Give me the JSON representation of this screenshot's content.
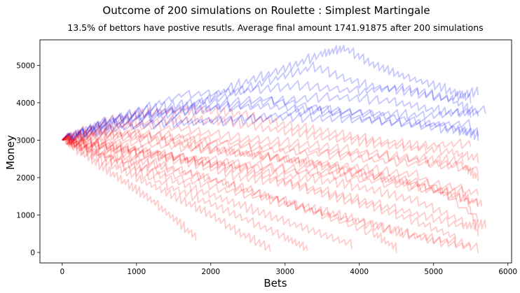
{
  "chart_data": {
    "type": "line",
    "title": "Outcome of 200 simulations on Roulette : Simplest Martingale",
    "subtitle": "13.5% of bettors have postive resutls. Average final amount 1741.91875 after 200 simulations",
    "xlabel": "Bets",
    "ylabel": "Money",
    "xlim": [
      -300,
      6050
    ],
    "ylim": [
      -280,
      5680
    ],
    "xticks": [
      0,
      1000,
      2000,
      3000,
      4000,
      5000,
      6000
    ],
    "yticks": [
      0,
      1000,
      2000,
      3000,
      4000,
      5000
    ],
    "grid": false,
    "legend": "none",
    "series_summary": {
      "count": 200,
      "start_value": 3000,
      "positive_fraction": 0.135,
      "average_final": 1741.91875
    },
    "series": [
      {
        "positive": true,
        "x": [
          0,
          600,
          1200,
          1800,
          2400,
          3000,
          3500,
          3800,
          4200,
          4600,
          5100,
          5500
        ],
        "y": [
          3000,
          3500,
          3700,
          3950,
          4500,
          4900,
          5300,
          5450,
          5000,
          4700,
          4400,
          4100
        ]
      },
      {
        "positive": true,
        "x": [
          0,
          700,
          1400,
          2100,
          2800,
          3400,
          4000,
          4600,
          5200,
          5600
        ],
        "y": [
          3000,
          3600,
          3900,
          4100,
          4600,
          4950,
          4500,
          4300,
          4100,
          3700
        ]
      },
      {
        "positive": true,
        "x": [
          0,
          800,
          1600,
          2400,
          3200,
          4000,
          4600,
          5200,
          5600
        ],
        "y": [
          3000,
          3600,
          4200,
          4300,
          4450,
          4300,
          4400,
          4100,
          4300
        ]
      },
      {
        "positive": true,
        "x": [
          0,
          900,
          1800,
          2700,
          3600,
          4400,
          5000,
          5500
        ],
        "y": [
          3000,
          3500,
          3800,
          4000,
          4150,
          4050,
          3800,
          3700
        ]
      },
      {
        "positive": true,
        "x": [
          0,
          800,
          1700,
          2600,
          3500,
          4300,
          5000,
          5700
        ],
        "y": [
          3000,
          3400,
          3500,
          3600,
          3800,
          3700,
          3650,
          3800
        ]
      },
      {
        "positive": true,
        "x": [
          0,
          700,
          1500,
          2300,
          3100,
          3900,
          4700,
          5500
        ],
        "y": [
          3000,
          3300,
          3450,
          3500,
          3600,
          3550,
          3450,
          3400
        ]
      },
      {
        "positive": true,
        "x": [
          0,
          900,
          1800,
          2700,
          3600,
          4500,
          5300,
          5600
        ],
        "y": [
          3000,
          3600,
          3900,
          4100,
          3800,
          3600,
          3300,
          3100
        ]
      },
      {
        "positive": true,
        "x": [
          0,
          600,
          1300,
          2000,
          2800,
          3500,
          4300,
          5100,
          5600
        ],
        "y": [
          3000,
          3450,
          3650,
          3850,
          3900,
          3750,
          3500,
          3300,
          3200
        ]
      },
      {
        "positive": false,
        "x": [
          0,
          600,
          1200,
          1800,
          2400,
          3000,
          3600,
          4200,
          4800,
          5400
        ],
        "y": [
          3000,
          2800,
          2600,
          2450,
          2250,
          2050,
          1900,
          1650,
          1350,
          800
        ]
      },
      {
        "positive": false,
        "x": [
          0,
          500,
          1000,
          1500,
          2000,
          2500,
          3000,
          3500,
          4000,
          4500,
          5000,
          5600
        ],
        "y": [
          3000,
          2700,
          2450,
          2200,
          1950,
          1650,
          1350,
          1100,
          850,
          550,
          300,
          100
        ]
      },
      {
        "positive": false,
        "x": [
          0,
          700,
          1400,
          2100,
          2800,
          3500,
          4200,
          4900,
          5600
        ],
        "y": [
          3000,
          3100,
          2950,
          2700,
          2550,
          2350,
          2100,
          1750,
          1300
        ]
      },
      {
        "positive": false,
        "x": [
          0,
          800,
          1600,
          2400,
          3200,
          4000,
          4800,
          5600
        ],
        "y": [
          3000,
          3400,
          3300,
          3050,
          2900,
          2700,
          2450,
          2200
        ]
      },
      {
        "positive": false,
        "x": [
          0,
          600,
          1200,
          1800,
          2400,
          3000,
          3600,
          4200,
          4800,
          5400,
          5700
        ],
        "y": [
          3000,
          2900,
          2700,
          2400,
          2200,
          1900,
          1600,
          1300,
          1000,
          700,
          750
        ]
      },
      {
        "positive": false,
        "x": [
          0,
          400,
          800,
          1200,
          1600,
          2000,
          2400,
          2800
        ],
        "y": [
          3000,
          2600,
          2200,
          1800,
          1400,
          1000,
          500,
          100
        ]
      },
      {
        "positive": false,
        "x": [
          0,
          500,
          1000,
          1500,
          2000,
          2500,
          3000,
          3300
        ],
        "y": [
          3000,
          2600,
          2150,
          1700,
          1300,
          850,
          400,
          100
        ]
      },
      {
        "positive": false,
        "x": [
          0,
          300,
          600,
          900,
          1200,
          1500,
          1800
        ],
        "y": [
          3000,
          2600,
          2200,
          1800,
          1400,
          900,
          400
        ]
      },
      {
        "positive": false,
        "x": [
          0,
          700,
          1400,
          2100,
          2800,
          3500,
          4200,
          4500
        ],
        "y": [
          3000,
          2700,
          2300,
          1900,
          1500,
          1000,
          500,
          100
        ]
      },
      {
        "positive": false,
        "x": [
          0,
          800,
          1600,
          2400,
          3200,
          4000,
          4800,
          5400
        ],
        "y": [
          3000,
          3150,
          3100,
          2900,
          2750,
          2600,
          2500,
          2450
        ]
      },
      {
        "positive": false,
        "x": [
          0,
          500,
          1000,
          1600,
          2200,
          2800,
          3400,
          4000,
          4600,
          5200,
          5600
        ],
        "y": [
          3000,
          3300,
          3450,
          3550,
          3500,
          3300,
          3100,
          2950,
          2800,
          2700,
          2500
        ]
      },
      {
        "positive": false,
        "x": [
          0,
          600,
          1200,
          1800,
          2400,
          3000,
          3600,
          4200,
          4800,
          5500
        ],
        "y": [
          3000,
          3500,
          3750,
          3800,
          3700,
          3400,
          3200,
          3000,
          2850,
          2900
        ]
      },
      {
        "positive": false,
        "x": [
          0,
          900,
          1800,
          2700,
          3600,
          4500,
          5400,
          5600
        ],
        "y": [
          3000,
          2750,
          2500,
          2300,
          2150,
          1950,
          1700,
          500
        ]
      },
      {
        "positive": false,
        "x": [
          0,
          600,
          1200,
          1800,
          2400,
          3000,
          3600,
          4200,
          4800,
          5300
        ],
        "y": [
          3000,
          2850,
          2550,
          2350,
          2000,
          1850,
          1500,
          1200,
          800,
          400
        ]
      },
      {
        "positive": false,
        "x": [
          0,
          1000,
          2000,
          3000,
          4000,
          5000,
          5600
        ],
        "y": [
          3000,
          2700,
          2400,
          2200,
          1950,
          1650,
          1600
        ]
      },
      {
        "positive": false,
        "x": [
          0,
          700,
          1400,
          2100,
          2800,
          3500,
          4200,
          4900,
          5500
        ],
        "y": [
          3000,
          2500,
          2100,
          1700,
          1400,
          1050,
          700,
          400,
          200
        ]
      },
      {
        "positive": false,
        "x": [
          0,
          500,
          1100,
          1700,
          2300,
          2900,
          3500,
          4100,
          4700,
          5300,
          5650
        ],
        "y": [
          3000,
          3200,
          3100,
          2900,
          2700,
          2500,
          2300,
          2050,
          1800,
          1500,
          1300
        ]
      },
      {
        "positive": false,
        "x": [
          0,
          800,
          1600,
          2400,
          3200,
          4000,
          4800,
          5600
        ],
        "y": [
          3000,
          2950,
          2800,
          2650,
          2450,
          2250,
          2050,
          900
        ]
      },
      {
        "positive": false,
        "x": [
          0,
          400,
          900,
          1400,
          1900,
          2400,
          2900,
          3400,
          3900
        ],
        "y": [
          3000,
          2700,
          2350,
          2000,
          1600,
          1250,
          900,
          550,
          200
        ]
      },
      {
        "positive": false,
        "x": [
          0,
          900,
          1800,
          2700,
          3600,
          4500,
          5400,
          5600
        ],
        "y": [
          3000,
          3200,
          3000,
          2750,
          2600,
          2400,
          2300,
          2000
        ]
      }
    ]
  }
}
